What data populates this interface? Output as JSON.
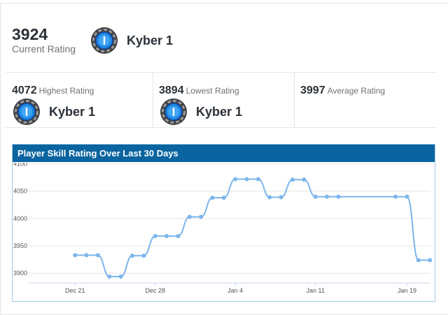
{
  "current": {
    "value": "3924",
    "label": "Current Rating",
    "rank": "Kyber 1"
  },
  "stats": [
    {
      "value": "4072",
      "label": "Highest Rating",
      "rank": "Kyber 1"
    },
    {
      "value": "3894",
      "label": "Lowest Rating",
      "rank": "Kyber 1"
    },
    {
      "value": "3997",
      "label": "Average Rating",
      "rank": ""
    }
  ],
  "chart_panel": {
    "title": "Player Skill Rating Over Last 30 Days"
  },
  "chart_data": {
    "type": "line",
    "title": "Player Skill Rating Over Last 30 Days",
    "xlabel": "",
    "ylabel": "",
    "x_ticks": [
      "Dec 21",
      "Dec 28",
      "Jan 4",
      "Jan 11",
      "Jan 19"
    ],
    "y_ticks": [
      3900,
      3950,
      4000,
      4050,
      4100
    ],
    "y_tick_labels": [
      "3900",
      "3950",
      "4000",
      "4050",
      "4100"
    ],
    "ylim": [
      3885,
      4102
    ],
    "grid": true,
    "series": [
      {
        "color": "#7cb5ec",
        "points": [
          {
            "x": "2019-12-21",
            "y": 3933
          },
          {
            "x": "2019-12-22",
            "y": 3933
          },
          {
            "x": "2019-12-23",
            "y": 3933
          },
          {
            "x": "2019-12-24",
            "y": 3894
          },
          {
            "x": "2019-12-25",
            "y": 3894
          },
          {
            "x": "2019-12-26",
            "y": 3932
          },
          {
            "x": "2019-12-27",
            "y": 3932
          },
          {
            "x": "2019-12-28",
            "y": 3968
          },
          {
            "x": "2019-12-29",
            "y": 3968
          },
          {
            "x": "2019-12-30",
            "y": 3968
          },
          {
            "x": "2019-12-31",
            "y": 4003
          },
          {
            "x": "2020-01-01",
            "y": 4003
          },
          {
            "x": "2020-01-02",
            "y": 4038
          },
          {
            "x": "2020-01-03",
            "y": 4038
          },
          {
            "x": "2020-01-04",
            "y": 4072
          },
          {
            "x": "2020-01-05",
            "y": 4072
          },
          {
            "x": "2020-01-06",
            "y": 4072
          },
          {
            "x": "2020-01-07",
            "y": 4039
          },
          {
            "x": "2020-01-08",
            "y": 4039
          },
          {
            "x": "2020-01-09",
            "y": 4071
          },
          {
            "x": "2020-01-10",
            "y": 4071
          },
          {
            "x": "2020-01-11",
            "y": 4040
          },
          {
            "x": "2020-01-12",
            "y": 4040
          },
          {
            "x": "2020-01-13",
            "y": 4040
          },
          {
            "x": "2020-01-18",
            "y": 4040
          },
          {
            "x": "2020-01-19",
            "y": 4040
          },
          {
            "x": "2020-01-20",
            "y": 3924
          },
          {
            "x": "2020-01-21",
            "y": 3924
          }
        ]
      }
    ]
  }
}
